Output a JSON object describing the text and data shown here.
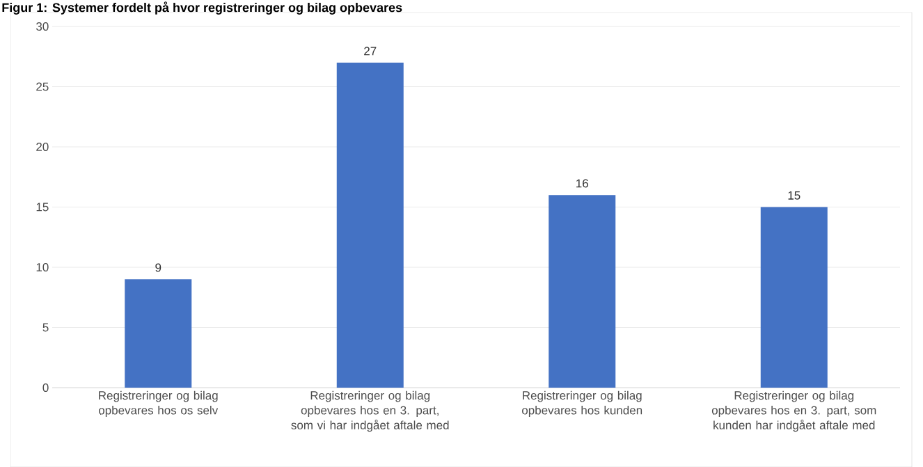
{
  "chart_data": {
    "type": "bar",
    "title": "Figur 1: Systemer fordelt på hvor registreringer og bilag opbevares",
    "categories": [
      "Registreringer og bilag opbevares hos os selv",
      "Registreringer og bilag opbevares hos en 3. part, som vi har indgået aftale med",
      "Registreringer og bilag opbevares hos kunden",
      "Registreringer og bilag opbevares hos en 3. part, som kunden har indgået aftale med"
    ],
    "values": [
      9,
      27,
      16,
      15
    ],
    "color": "#4472c4",
    "ylim": [
      0,
      30
    ],
    "yticks": [
      0,
      5,
      10,
      15,
      20,
      25,
      30
    ],
    "grid": "y",
    "data_labels": true
  }
}
